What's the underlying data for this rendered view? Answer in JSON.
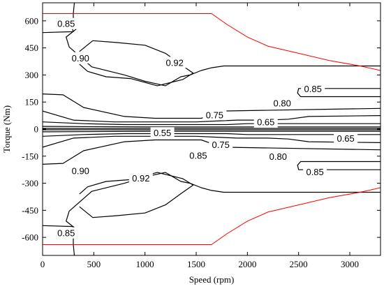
{
  "chart_data": {
    "type": "contour",
    "title": "",
    "xlabel": "Speed (rpm)",
    "ylabel": "Torque (Nm)",
    "xlim": [
      0,
      3300
    ],
    "ylim": [
      -700,
      700
    ],
    "xticks": [
      0,
      500,
      1000,
      1500,
      2000,
      2500,
      3000
    ],
    "yticks": [
      600,
      450,
      300,
      150,
      0,
      -150,
      -300,
      -450,
      -600
    ],
    "colors": {
      "contour": "#000000",
      "limit_curve": "#ff0000"
    },
    "torque_limit_curve": {
      "color": "#ff0000",
      "x": [
        0,
        1650,
        1800,
        2000,
        2200,
        2500,
        2800,
        3100,
        3300
      ],
      "y": [
        640,
        640,
        580,
        510,
        460,
        420,
        380,
        350,
        325
      ]
    },
    "contour_labels": [
      {
        "text": "0.85",
        "x": 230,
        "y": 585
      },
      {
        "text": "0.90",
        "x": 370,
        "y": 395
      },
      {
        "text": "0.92",
        "x": 1290,
        "y": 370
      },
      {
        "text": "0.85",
        "x": 2640,
        "y": 225
      },
      {
        "text": "0.80",
        "x": 2340,
        "y": 145
      },
      {
        "text": "0.75",
        "x": 1680,
        "y": 80
      },
      {
        "text": "0.65",
        "x": 2180,
        "y": 40
      },
      {
        "text": "0.55",
        "x": 1170,
        "y": -20
      },
      {
        "text": "0.75",
        "x": 1740,
        "y": -85
      },
      {
        "text": "0.65",
        "x": 2960,
        "y": -50
      },
      {
        "text": "0.85",
        "x": 1520,
        "y": -145
      },
      {
        "text": "0.80",
        "x": 2300,
        "y": -150
      },
      {
        "text": "0.85",
        "x": 2660,
        "y": -235
      },
      {
        "text": "0.90",
        "x": 370,
        "y": -230
      },
      {
        "text": "0.92",
        "x": 960,
        "y": -270
      },
      {
        "text": "0.85",
        "x": 230,
        "y": -575
      }
    ],
    "contours": [
      {
        "level": "0.92",
        "x": [
          360,
          490,
          720,
          1000,
          1200,
          1370,
          1470,
          1370,
          1120,
          860,
          620,
          440,
          360
        ],
        "y": [
          430,
          490,
          480,
          465,
          420,
          350,
          310,
          275,
          240,
          280,
          290,
          320,
          360
        ]
      },
      {
        "level": "0.92",
        "x": [
          360,
          440,
          620,
          860,
          1120,
          1370,
          1470,
          1370,
          1200,
          1000,
          720,
          490,
          360
        ],
        "y": [
          -360,
          -320,
          -290,
          -280,
          -240,
          -275,
          -310,
          -350,
          -420,
          -465,
          -480,
          -490,
          -430
        ]
      },
      {
        "level": "0.90",
        "x": [
          330,
          230,
          260,
          480,
          800,
          1000,
          1200,
          1350,
          1440,
          1550,
          1650,
          1770,
          3300
        ],
        "y": [
          555,
          510,
          455,
          345,
          300,
          265,
          240,
          290,
          300,
          325,
          340,
          350,
          350
        ]
      },
      {
        "level": "0.90",
        "x": [
          330,
          230,
          260,
          480,
          800,
          1000,
          1200,
          1350,
          1440,
          1550,
          1650,
          1770,
          3300
        ],
        "y": [
          -555,
          -510,
          -455,
          -345,
          -300,
          -265,
          -240,
          -290,
          -300,
          -325,
          -340,
          -350,
          -350
        ]
      },
      {
        "level": "0.85",
        "x": [
          0,
          300,
          280,
          300,
          300,
          310
        ],
        "y": [
          535,
          540,
          575,
          600,
          640,
          700
        ]
      },
      {
        "level": "0.85",
        "x": [
          0,
          300,
          280,
          300,
          300,
          310
        ],
        "y": [
          -535,
          -540,
          -575,
          -600,
          -640,
          -700
        ]
      },
      {
        "level": "0.85",
        "x": [
          0,
          200,
          400,
          800,
          1100,
          1400,
          1550,
          1650,
          1750,
          3300
        ],
        "y": [
          195,
          190,
          120,
          70,
          60,
          60,
          60,
          80,
          100,
          115
        ]
      },
      {
        "level": "0.85",
        "x": [
          0,
          200,
          400,
          800,
          1100,
          1400,
          1550,
          1650,
          1750,
          3300
        ],
        "y": [
          -195,
          -190,
          -120,
          -70,
          -60,
          -60,
          -60,
          -80,
          -100,
          -115
        ]
      },
      {
        "level": "0.85",
        "x": [
          3300,
          2500,
          2490,
          2520,
          3300
        ],
        "y": [
          225,
          225,
          200,
          180,
          180
        ]
      },
      {
        "level": "0.85",
        "x": [
          3300,
          2500,
          2490,
          2520,
          3300
        ],
        "y": [
          -225,
          -225,
          -200,
          -180,
          -180
        ]
      },
      {
        "level": "0.80",
        "x": [
          0,
          300,
          700,
          1000,
          1300,
          1500,
          1700,
          1900,
          2200,
          2400,
          2600,
          3300
        ],
        "y": [
          100,
          50,
          40,
          40,
          40,
          40,
          45,
          50,
          50,
          55,
          70,
          75
        ]
      },
      {
        "level": "0.80",
        "x": [
          0,
          300,
          700,
          1000,
          1300,
          1500,
          1700,
          1900,
          2200,
          2400,
          2600,
          3300
        ],
        "y": [
          -100,
          -50,
          -40,
          -40,
          -40,
          -40,
          -45,
          -50,
          -50,
          -55,
          -70,
          -75
        ]
      },
      {
        "level": "0.75",
        "x": [
          0,
          400,
          800,
          1200,
          1600,
          1800,
          2000,
          3300
        ],
        "y": [
          40,
          30,
          25,
          25,
          25,
          25,
          30,
          30
        ]
      },
      {
        "level": "0.75",
        "x": [
          0,
          400,
          800,
          1200,
          1600,
          1800,
          2000,
          3300
        ],
        "y": [
          -40,
          -30,
          -25,
          -25,
          -25,
          -25,
          -30,
          -30
        ]
      },
      {
        "level": "0.65",
        "x": [
          0,
          1100,
          3300
        ],
        "y": [
          15,
          12,
          12
        ]
      },
      {
        "level": "0.65",
        "x": [
          0,
          1100,
          3300
        ],
        "y": [
          -15,
          -12,
          -12
        ]
      },
      {
        "level": "0.55",
        "x": [
          0,
          3300
        ],
        "y": [
          4,
          4
        ]
      },
      {
        "level": "0.55",
        "x": [
          0,
          3300
        ],
        "y": [
          -4,
          -4
        ]
      }
    ]
  }
}
